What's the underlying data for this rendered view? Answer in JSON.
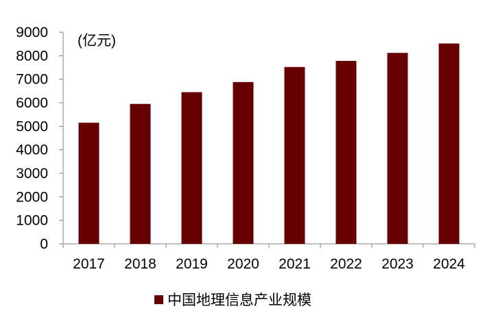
{
  "chart_data": {
    "type": "bar",
    "unit": "(亿元)",
    "categories": [
      "2017",
      "2018",
      "2019",
      "2020",
      "2021",
      "2022",
      "2023",
      "2024"
    ],
    "series": [
      {
        "name": "中国地理信息产业规模",
        "values": [
          5150,
          5950,
          6450,
          6880,
          7520,
          7780,
          8120,
          8520
        ],
        "color": "#660000"
      }
    ],
    "ylim": [
      0,
      9000
    ],
    "yticks": [
      "0",
      "1000",
      "2000",
      "3000",
      "4000",
      "5000",
      "6000",
      "7000",
      "8000",
      "9000"
    ],
    "grid": false,
    "legend_position": "bottom"
  }
}
